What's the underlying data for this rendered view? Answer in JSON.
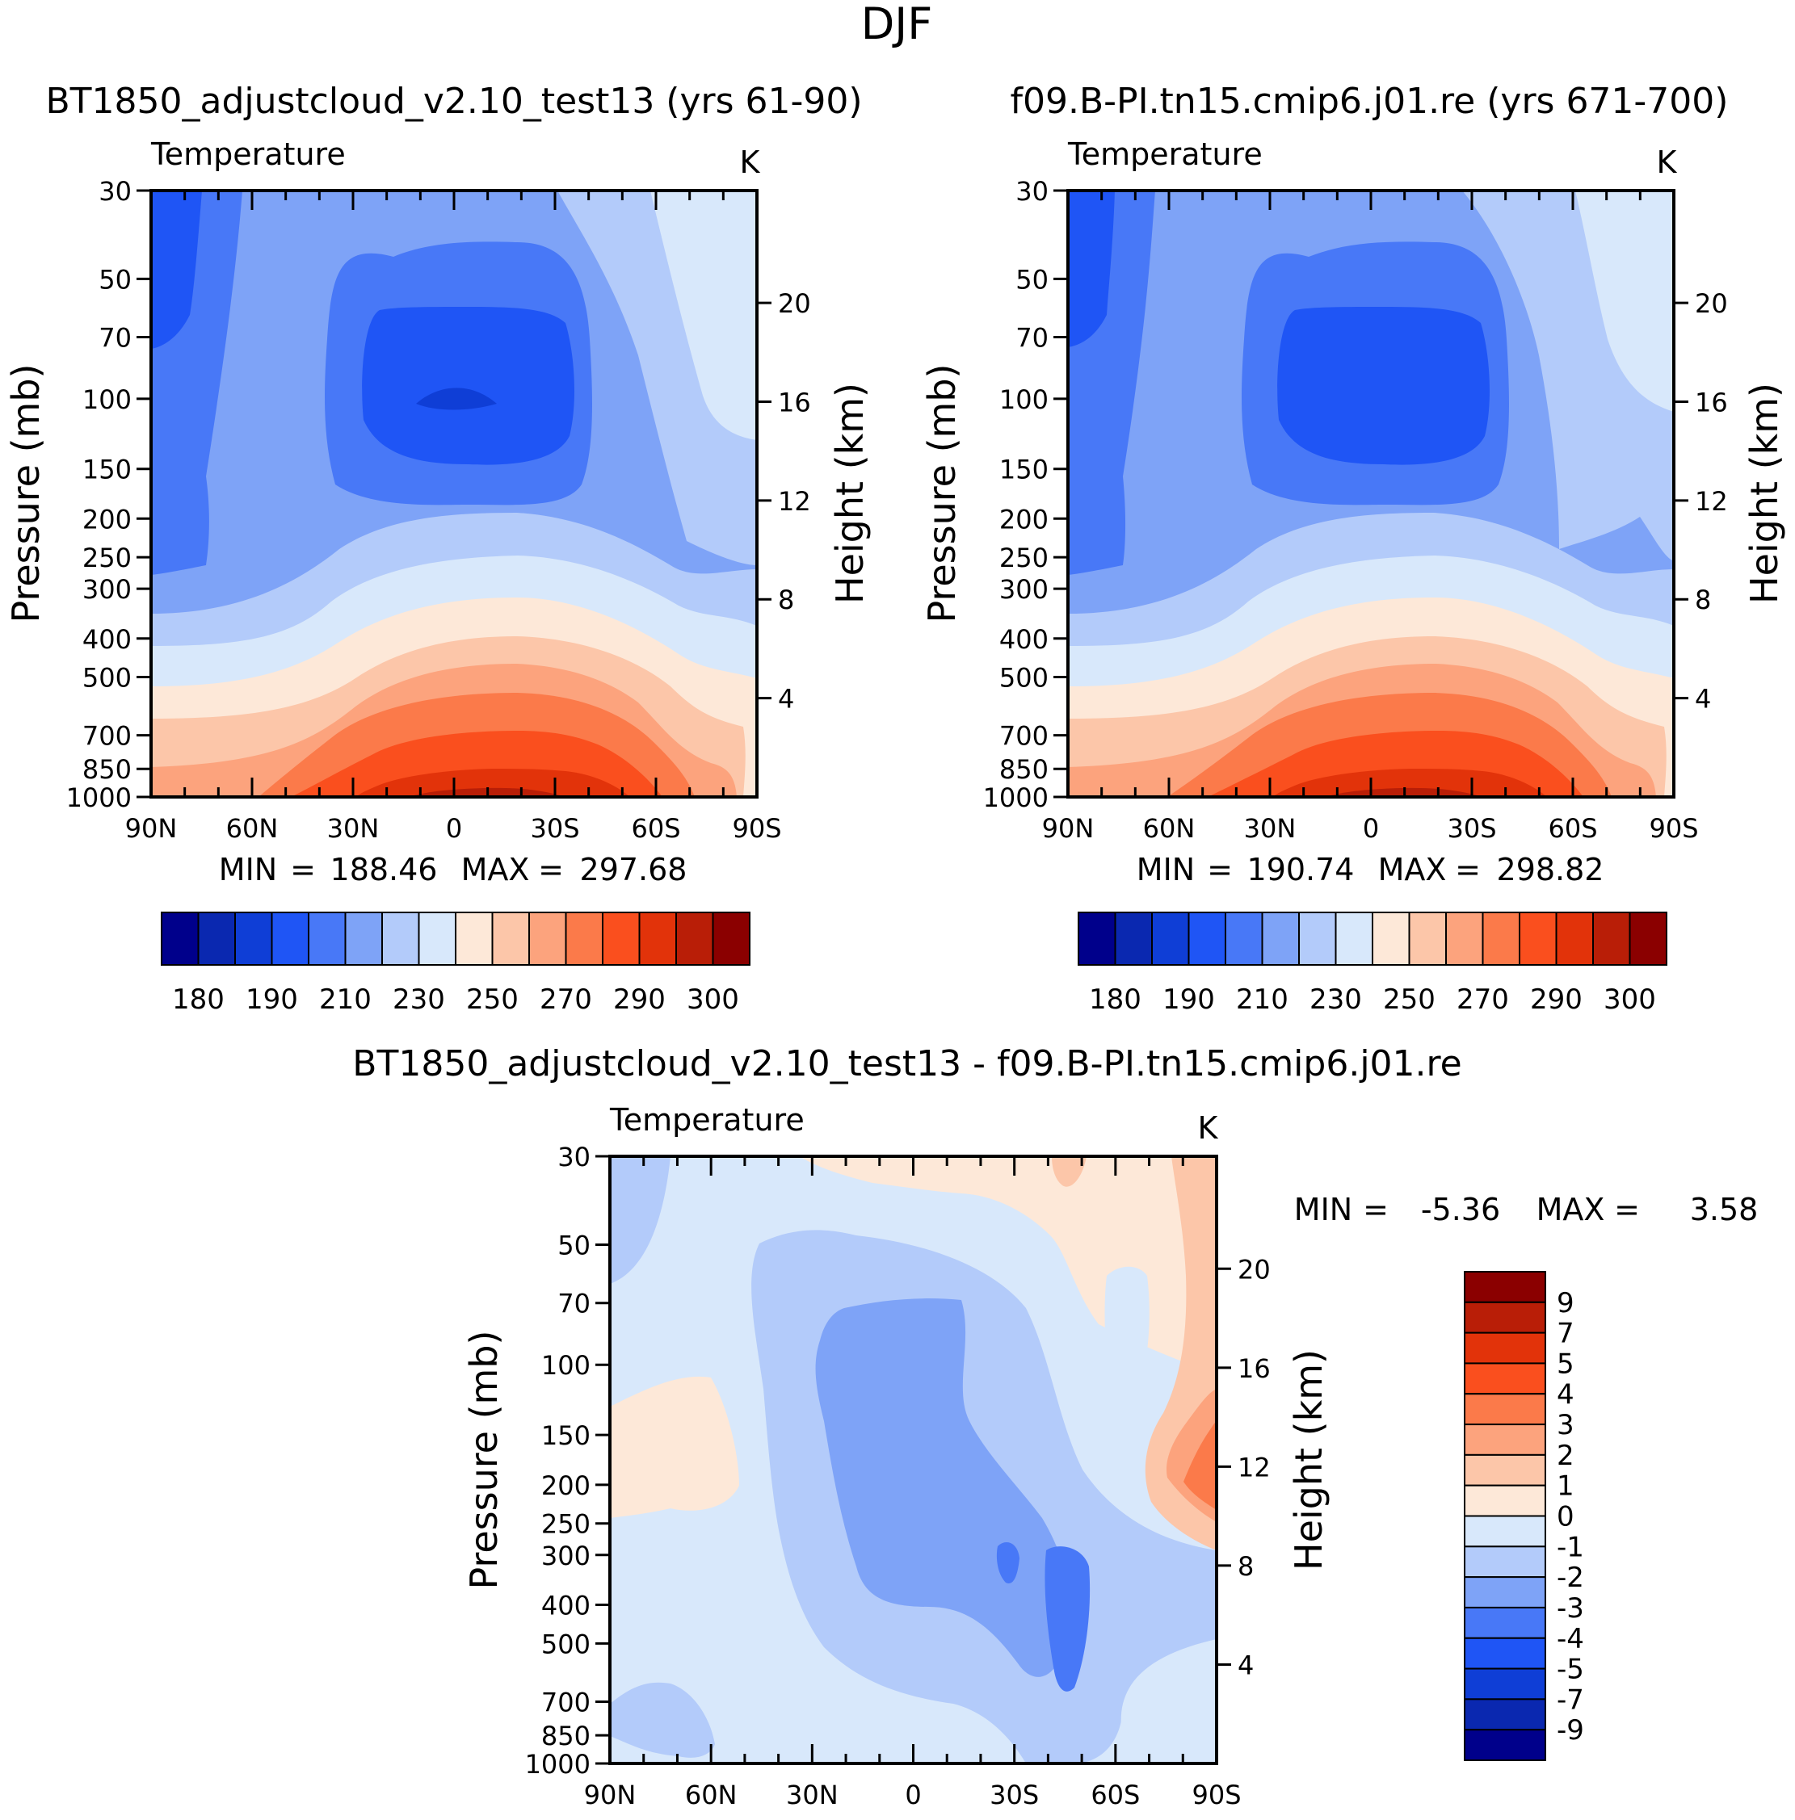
{
  "title": "DJF",
  "chart_data": [
    {
      "type": "heatmap",
      "panel": "left",
      "case_title": "BT1850_adjustcloud_v2.10_test13 (yrs 61-90)",
      "variable": "Temperature",
      "units": "K",
      "ylabel": "Pressure (mb)",
      "right_label": "Height (km)",
      "xticks": [
        "90N",
        "60N",
        "30N",
        "0",
        "30S",
        "60S",
        "90S"
      ],
      "pressure_ticks": [
        30,
        50,
        70,
        100,
        150,
        200,
        250,
        300,
        400,
        500,
        700,
        850,
        1000
      ],
      "height_ticks": [
        20,
        16,
        12,
        8,
        4
      ],
      "stats": {
        "min_label": "MIN",
        "min": "188.46",
        "max_label": "MAX",
        "max": "297.68"
      },
      "colorbar_labels": [
        "180",
        "190",
        "210",
        "230",
        "250",
        "270",
        "290",
        "300"
      ],
      "contours_note": "Cold tropical tropopause (~188 K near 100 mb at equator) warming to ~298 K near surface at equator"
    },
    {
      "type": "heatmap",
      "panel": "right",
      "case_title": "f09.B-PI.tn15.cmip6.j01.re (yrs 671-700)",
      "variable": "Temperature",
      "units": "K",
      "ylabel": "Pressure (mb)",
      "right_label": "Height (km)",
      "xticks": [
        "90N",
        "60N",
        "30N",
        "0",
        "30S",
        "60S",
        "90S"
      ],
      "pressure_ticks": [
        30,
        50,
        70,
        100,
        150,
        200,
        250,
        300,
        400,
        500,
        700,
        850,
        1000
      ],
      "height_ticks": [
        20,
        16,
        12,
        8,
        4
      ],
      "stats": {
        "min_label": "MIN",
        "min": "190.74",
        "max_label": "MAX",
        "max": "298.82"
      },
      "colorbar_labels": [
        "180",
        "190",
        "210",
        "230",
        "250",
        "270",
        "290",
        "300"
      ]
    },
    {
      "type": "heatmap",
      "panel": "difference",
      "case_title": "BT1850_adjustcloud_v2.10_test13 - f09.B-PI.tn15.cmip6.j01.re",
      "variable": "Temperature",
      "units": "K",
      "ylabel": "Pressure (mb)",
      "right_label": "Height (km)",
      "xticks": [
        "90N",
        "60N",
        "30N",
        "0",
        "30S",
        "60S",
        "90S"
      ],
      "pressure_ticks": [
        30,
        50,
        70,
        100,
        150,
        200,
        250,
        300,
        400,
        500,
        700,
        850,
        1000
      ],
      "height_ticks": [
        20,
        16,
        12,
        8,
        4
      ],
      "stats": {
        "min_label": "MIN",
        "min": "-5.36",
        "max_label": "MAX",
        "max": "3.58"
      },
      "colorbar_labels": [
        "9",
        "7",
        "5",
        "4",
        "3",
        "2",
        "1",
        "0",
        "-1",
        "-2",
        "-3",
        "-4",
        "-5",
        "-7",
        "-9"
      ]
    }
  ],
  "colors": {
    "scale16": [
      "#00008b",
      "#0a28b0",
      "#0f3ed6",
      "#1f55f5",
      "#4878f7",
      "#7ea3f7",
      "#b3cbfa",
      "#d8e8fb",
      "#fde8d8",
      "#fcc6a9",
      "#fca37d",
      "#fb7a4a",
      "#fa4f1e",
      "#e2330a",
      "#b91e07",
      "#8b0000"
    ]
  }
}
